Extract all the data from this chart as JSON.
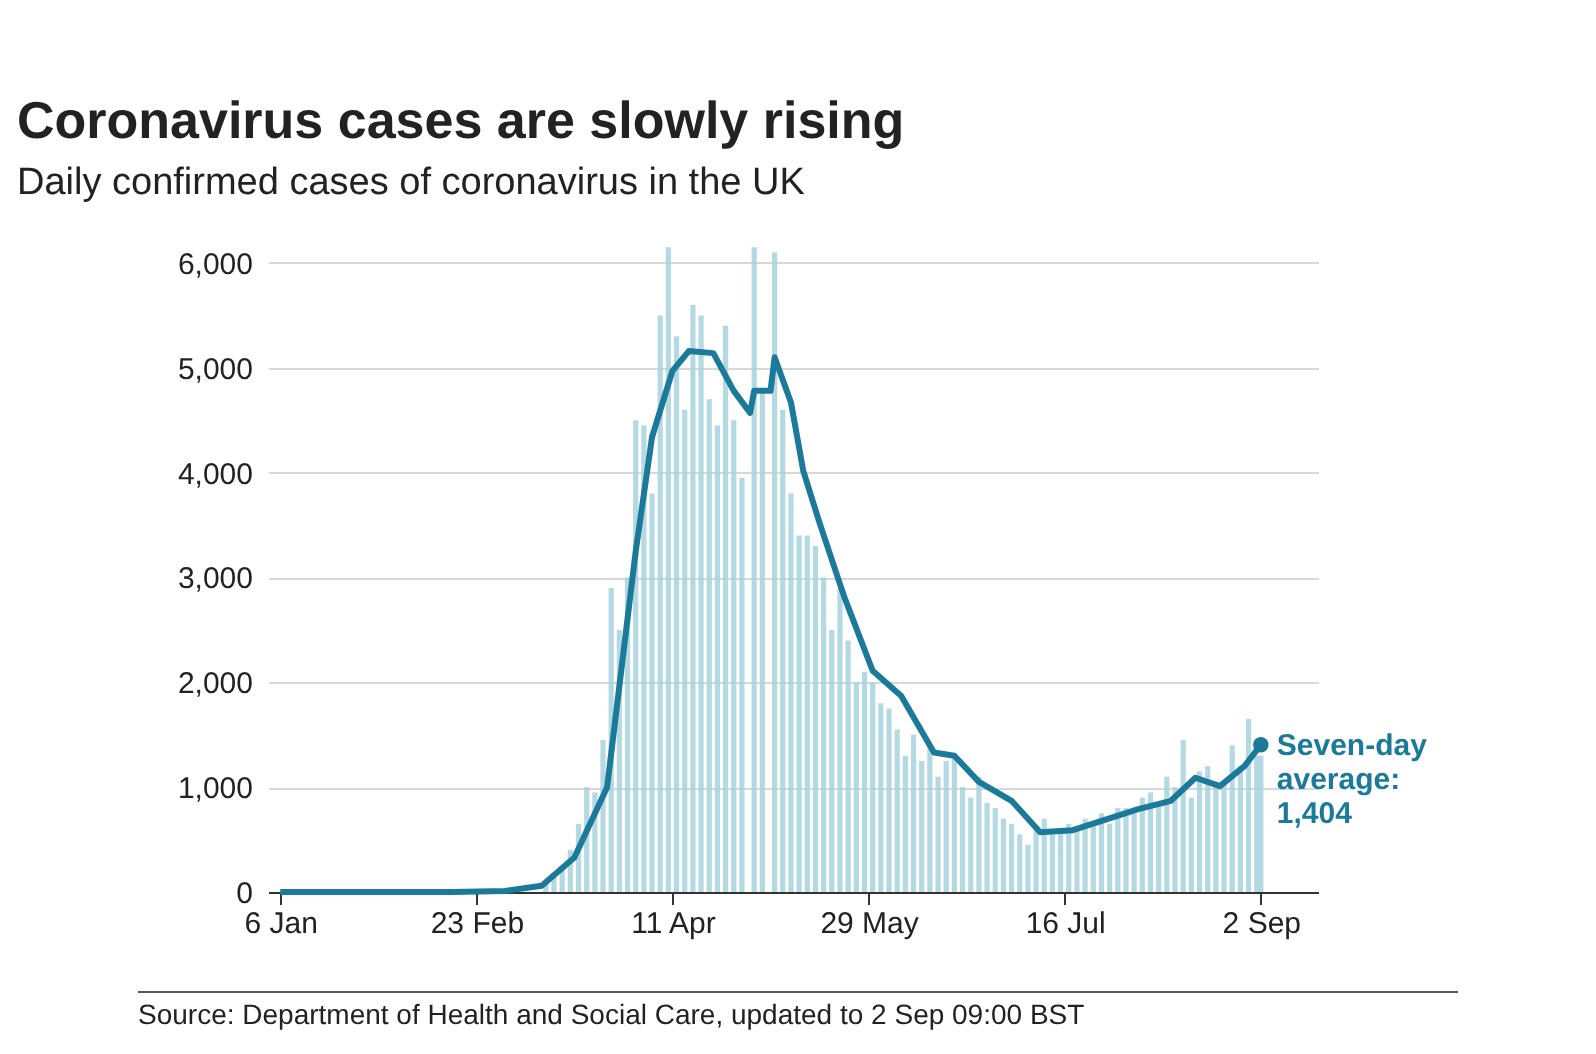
{
  "chart_data": {
    "type": "bar",
    "title": "Coronavirus cases are slowly rising",
    "subtitle": "Daily confirmed cases of coronavirus in the UK",
    "xlim": [
      "--01-03",
      "--09-16"
    ],
    "xticks": [
      {
        "value": "--01-06",
        "label": "6 Jan"
      },
      {
        "value": "--02-23",
        "label": "23 Feb"
      },
      {
        "value": "--04-11",
        "label": "11 Apr"
      },
      {
        "value": "--05-29",
        "label": "29 May"
      },
      {
        "value": "--07-16",
        "label": "16 Jul"
      },
      {
        "value": "--09-02",
        "label": "2 Sep"
      }
    ],
    "ylim": [
      0,
      6200
    ],
    "yticks": [
      0,
      {
        "value": 1000,
        "label": "1,000"
      },
      {
        "value": 2000,
        "label": "2,000"
      },
      {
        "value": 3000,
        "label": "3,000"
      },
      {
        "value": 4000,
        "label": "4,000"
      },
      {
        "value": 5000,
        "label": "5,000"
      },
      {
        "value": 6000,
        "label": "6,000"
      }
    ],
    "grid": "y",
    "series": [
      {
        "color": "#a8d2de",
        "x": [
          "--03-01",
          "--03-03",
          "--03-05",
          "--03-07",
          "--03-09",
          "--03-11",
          "--03-13",
          "--03-15",
          "--03-17",
          "--03-19",
          "--03-21",
          "--03-23",
          "--03-25",
          "--03-27",
          "--03-29",
          "--03-31",
          "--04-02",
          "--04-04",
          "--04-06",
          "--04-08",
          "--04-10",
          "--04-12",
          "--04-14",
          "--04-16",
          "--04-18",
          "--04-20",
          "--04-22",
          "--04-24",
          "--04-26",
          "--04-28",
          "--05-01",
          "--05-03",
          "--05-06",
          "--05-08",
          "--05-10",
          "--05-12",
          "--05-14",
          "--05-16",
          "--05-18",
          "--05-20",
          "--05-22",
          "--05-24",
          "--05-26",
          "--05-28",
          "--05-30",
          "--06-01",
          "--06-03",
          "--06-05",
          "--06-07",
          "--06-09",
          "--06-11",
          "--06-13",
          "--06-15",
          "--06-17",
          "--06-19",
          "--06-21",
          "--06-23",
          "--06-25",
          "--06-27",
          "--06-29",
          "--07-01",
          "--07-03",
          "--07-05",
          "--07-07",
          "--07-09",
          "--07-11",
          "--07-13",
          "--07-15",
          "--07-17",
          "--07-19",
          "--07-21",
          "--07-23",
          "--07-25",
          "--07-27",
          "--07-29",
          "--07-31",
          "--08-02",
          "--08-04",
          "--08-06",
          "--08-08",
          "--08-10",
          "--08-12",
          "--08-14",
          "--08-16",
          "--08-18",
          "--08-20",
          "--08-22",
          "--08-24",
          "--08-26",
          "--08-28",
          "--08-30",
          "--09-01",
          "--09-02"
        ],
        "values": [
          10,
          20,
          null,
          null,
          null,
          80,
          150,
          250,
          400,
          650,
          1000,
          950,
          1450,
          2900,
          2500,
          3000,
          4500,
          4450,
          3800,
          5500,
          6150,
          5300,
          4600,
          5600,
          5500,
          4700,
          4450,
          5400,
          4500,
          3950,
          6150,
          4800,
          6100,
          4600,
          3800,
          3400,
          3400,
          3300,
          3000,
          2500,
          2900,
          2400,
          2000,
          2100,
          2000,
          1800,
          1750,
          1550,
          1300,
          1500,
          1250,
          1400,
          1100,
          1250,
          1300,
          1000,
          900,
          1100,
          850,
          800,
          700,
          650,
          550,
          450,
          600,
          700,
          550,
          600,
          650,
          600,
          700,
          650,
          750,
          650,
          800,
          800,
          750,
          900,
          950,
          850,
          1100,
          1000,
          1450,
          900,
          1150,
          1200,
          1050,
          1050,
          1400,
          1200,
          1650,
          1300,
          1300
        ]
      },
      {
        "type": "line",
        "color": "#1b7a99",
        "x": [
          "--01-06",
          "--01-20",
          "--02-03",
          "--02-17",
          "--03-01",
          "--03-10",
          "--03-18",
          "--03-26",
          "--04-02",
          "--04-06",
          "--04-11",
          "--04-15",
          "--04-21",
          "--04-26",
          "--04-30",
          "--05-01",
          "--05-05",
          "--05-06",
          "--05-10",
          "--05-13",
          "--05-17",
          "--05-23",
          "--05-30",
          "--06-06",
          "--06-14",
          "--06-19",
          "--06-25",
          "--07-03",
          "--07-10",
          "--07-18",
          "--07-26",
          "--08-03",
          "--08-11",
          "--08-17",
          "--08-23",
          "--08-29",
          "--09-02"
        ],
        "values": [
          0,
          0,
          0,
          0,
          10,
          60,
          330,
          1000,
          3250,
          4340,
          4970,
          5160,
          5140,
          4780,
          4570,
          4780,
          4780,
          5100,
          4670,
          4020,
          3520,
          2820,
          2110,
          1870,
          1330,
          1300,
          1050,
          870,
          570,
          590,
          690,
          790,
          870,
          1090,
          1010,
          1200,
          1404
        ]
      }
    ],
    "annotations": [
      {
        "text": "Seven-day\naverage:\n1,404",
        "x": "--09-02",
        "y": 1404
      },
      "Source: Department of Health and Social Care, updated to 2 Sep 09:00 BST"
    ]
  }
}
